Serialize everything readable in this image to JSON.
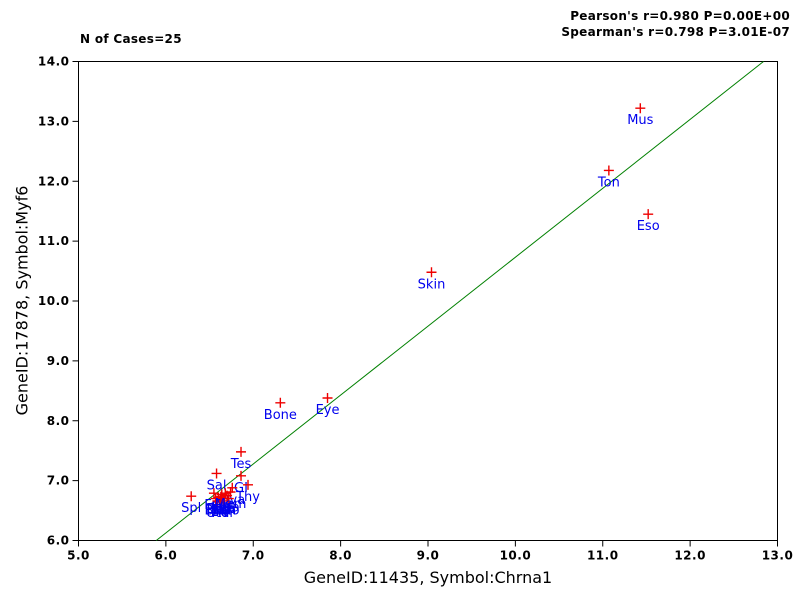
{
  "figure": {
    "background": "#FFFFFF",
    "n_cases_label": "N of Cases=25",
    "stats_line1": "Pearson's r=0.980 P=0.00E+00",
    "stats_line2": "Spearman's r=0.798 P=3.01E-07"
  },
  "chart_data": {
    "type": "scatter",
    "title": "",
    "xlabel": "GeneID:11435, Symbol:Chrna1",
    "ylabel": "GeneID:17878, Symbol:Myf6",
    "xlim": [
      5.0,
      13.0
    ],
    "ylim": [
      6.0,
      14.0
    ],
    "xticks": [
      "5.0",
      "6.0",
      "7.0",
      "8.0",
      "9.0",
      "10.0",
      "11.0",
      "12.0",
      "13.0"
    ],
    "yticks": [
      "6.0",
      "7.0",
      "8.0",
      "9.0",
      "10.0",
      "11.0",
      "12.0",
      "13.0",
      "14.0"
    ],
    "grid": false,
    "legend": "none",
    "marker": "+",
    "marker_color": "#EE0000",
    "label_color": "#0000EE",
    "line_color": "#008000",
    "border_color": "#000000",
    "regression_line": {
      "x1": 5.89,
      "y1": 6.0,
      "x2": 12.84,
      "y2": 14.0
    },
    "points": [
      {
        "label": "Mus",
        "x": 11.43,
        "y": 13.22
      },
      {
        "label": "Ton",
        "x": 11.07,
        "y": 12.18
      },
      {
        "label": "Eso",
        "x": 11.52,
        "y": 11.45
      },
      {
        "label": "Skin",
        "x": 9.04,
        "y": 10.48
      },
      {
        "label": "Eye",
        "x": 7.85,
        "y": 8.38
      },
      {
        "label": "Bone",
        "x": 7.31,
        "y": 8.3
      },
      {
        "label": "Tes",
        "x": 6.86,
        "y": 7.48
      },
      {
        "label": "Sal",
        "x": 6.58,
        "y": 7.12
      },
      {
        "label": "GI",
        "x": 6.86,
        "y": 7.08
      },
      {
        "label": "Thy",
        "x": 6.94,
        "y": 6.93
      },
      {
        "label": "Ova",
        "x": 6.76,
        "y": 6.88
      },
      {
        "label": "Spl",
        "x": 6.29,
        "y": 6.74
      },
      {
        "label": "Fat",
        "x": 6.55,
        "y": 6.79
      },
      {
        "label": "Pan",
        "x": 6.6,
        "y": 6.72
      },
      {
        "label": "Kid",
        "x": 6.64,
        "y": 6.77
      },
      {
        "label": "Lun",
        "x": 6.67,
        "y": 6.7
      },
      {
        "label": "Liv",
        "x": 6.62,
        "y": 6.68
      },
      {
        "label": "Hea",
        "x": 6.7,
        "y": 6.75
      },
      {
        "label": "Bra",
        "x": 6.57,
        "y": 6.7
      },
      {
        "label": "Adr",
        "x": 6.66,
        "y": 6.66
      },
      {
        "label": "Sto",
        "x": 6.72,
        "y": 6.7
      },
      {
        "label": "Ute",
        "x": 6.59,
        "y": 6.66
      },
      {
        "label": "Pro",
        "x": 6.68,
        "y": 6.79
      },
      {
        "label": "Emb",
        "x": 6.63,
        "y": 6.73
      },
      {
        "label": "Mam",
        "x": 6.74,
        "y": 6.81
      }
    ]
  }
}
